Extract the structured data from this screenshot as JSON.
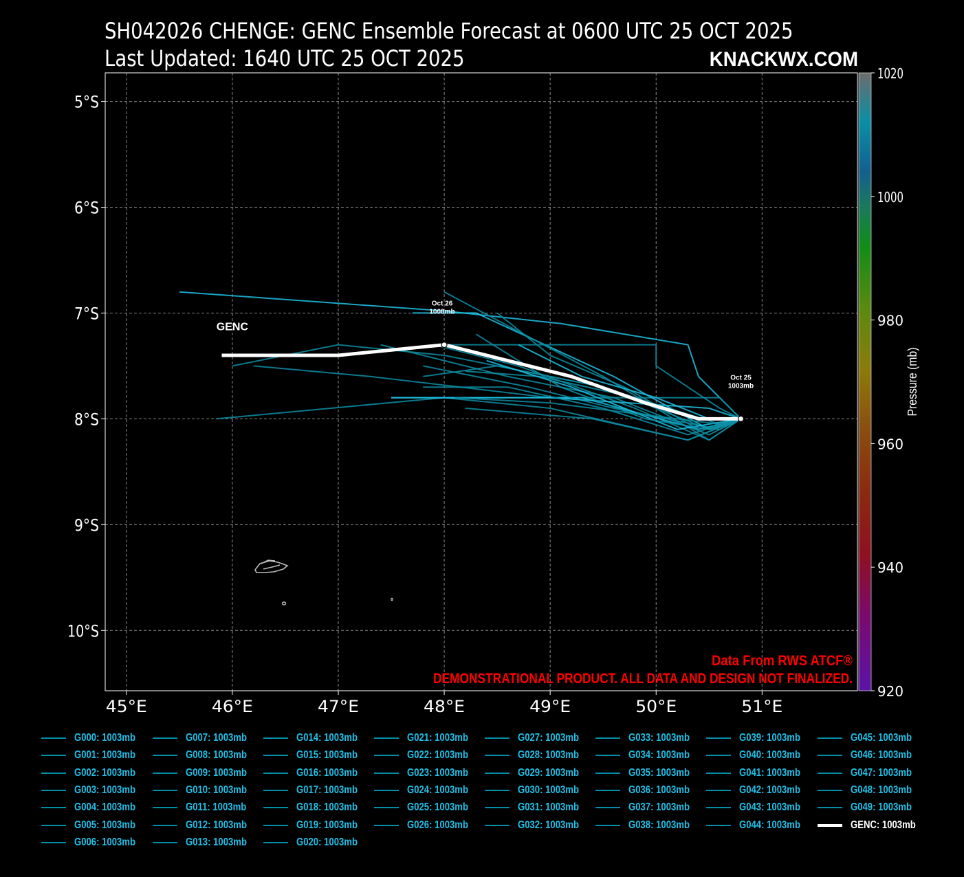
{
  "header": {
    "title": "SH042026 CHENGE: GENC Ensemble Forecast at 0600 UTC 25 OCT 2025",
    "subtitle": "Last Updated: 1640 UTC 25 OCT 2025",
    "brand": "KNACKWX.COM"
  },
  "colors": {
    "background": "#000000",
    "member_track": "#0a8fa6",
    "member_track_bright": "#1ec3e6",
    "genc_track": "#ffffff",
    "disclaimer": "#ff0000",
    "legend_text": "#1fc0e8"
  },
  "chart_data": {
    "type": "line",
    "title": "SH042026 CHENGE: GENC Ensemble Forecast at 0600 UTC 25 OCT 2025",
    "xlim": [
      44.8,
      51.9
    ],
    "ylim": [
      -10.57,
      -4.73
    ],
    "x_ticks": [
      45,
      46,
      47,
      48,
      49,
      50,
      51
    ],
    "x_tick_labels": [
      "45°E",
      "46°E",
      "47°E",
      "48°E",
      "49°E",
      "50°E",
      "51°E"
    ],
    "y_ticks": [
      -5,
      -6,
      -7,
      -8,
      -9,
      -10
    ],
    "y_tick_labels": [
      "5°S",
      "6°S",
      "7°S",
      "8°S",
      "9°S",
      "10°S"
    ],
    "grid": true,
    "colorbar": {
      "label": "Pressure (mb)",
      "range": [
        920,
        1020
      ],
      "ticks": [
        1020,
        1000,
        980,
        960,
        940,
        920
      ],
      "tick_labels": [
        "1020",
        "1000",
        "980",
        "960",
        "940",
        "920"
      ]
    },
    "annotations": [
      {
        "label": "GENC",
        "lon": 46.0,
        "lat": -7.15
      },
      {
        "line1": "Oct 26",
        "line2": "1008mb",
        "lon": 47.98,
        "lat": -6.93
      },
      {
        "line1": "Oct 25",
        "line2": "1003mb",
        "lon": 50.8,
        "lat": -7.63
      }
    ],
    "disclaimer": [
      "Data From RWS ATCF®",
      "DEMONSTRATIONAL PRODUCT. ALL DATA AND DESIGN NOT FINALIZED."
    ],
    "genc_track": {
      "name": "GENC: 1003mb",
      "points": [
        [
          50.8,
          -8.0
        ],
        [
          50.4,
          -8.0
        ],
        [
          49.9,
          -7.85
        ],
        [
          49.2,
          -7.6
        ],
        [
          48.0,
          -7.3
        ],
        [
          47.0,
          -7.4
        ],
        [
          45.9,
          -7.4
        ]
      ],
      "markers": [
        [
          50.8,
          -8.0
        ],
        [
          48.0,
          -7.3
        ]
      ]
    },
    "member_tracks": [
      [
        [
          50.8,
          -8.0
        ],
        [
          50.4,
          -7.6
        ],
        [
          50.3,
          -7.3
        ],
        [
          49.1,
          -7.1
        ],
        [
          48.0,
          -6.98
        ],
        [
          45.5,
          -6.8
        ]
      ],
      [
        [
          50.8,
          -8.0
        ],
        [
          50.5,
          -8.1
        ],
        [
          49.5,
          -7.7
        ],
        [
          48.0,
          -7.4
        ],
        [
          47.0,
          -7.3
        ],
        [
          46.0,
          -7.5
        ]
      ],
      [
        [
          50.8,
          -8.0
        ],
        [
          50.6,
          -7.8
        ],
        [
          49.0,
          -7.8
        ],
        [
          47.3,
          -7.6
        ],
        [
          46.2,
          -7.5
        ]
      ],
      [
        [
          50.8,
          -8.0
        ],
        [
          50.3,
          -8.2
        ],
        [
          49.0,
          -7.9
        ],
        [
          48.0,
          -7.8
        ],
        [
          45.85,
          -8.0
        ]
      ],
      [
        [
          50.8,
          -8.0
        ],
        [
          50.5,
          -8.1
        ],
        [
          49.6,
          -7.6
        ],
        [
          48.3,
          -7.0
        ],
        [
          47.7,
          -7.0
        ]
      ],
      [
        [
          50.8,
          -8.0
        ],
        [
          50.5,
          -8.2
        ],
        [
          49.5,
          -7.6
        ],
        [
          48.0,
          -6.8
        ]
      ],
      [
        [
          50.8,
          -8.0
        ],
        [
          50.6,
          -7.9
        ],
        [
          50.0,
          -7.5
        ],
        [
          50.0,
          -7.3
        ],
        [
          48.0,
          -7.3
        ]
      ],
      [
        [
          50.8,
          -8.0
        ],
        [
          50.5,
          -8.2
        ],
        [
          49.8,
          -7.9
        ],
        [
          48.7,
          -7.5
        ],
        [
          47.9,
          -7.3
        ]
      ],
      [
        [
          50.8,
          -8.0
        ],
        [
          50.4,
          -8.1
        ],
        [
          49.3,
          -7.8
        ],
        [
          47.5,
          -7.8
        ]
      ],
      [
        [
          50.8,
          -8.0
        ],
        [
          50.6,
          -8.1
        ],
        [
          49.6,
          -7.9
        ],
        [
          48.8,
          -7.7
        ],
        [
          47.8,
          -7.5
        ]
      ],
      [
        [
          50.8,
          -8.0
        ],
        [
          50.5,
          -8.15
        ],
        [
          49.6,
          -7.8
        ],
        [
          48.6,
          -7.6
        ],
        [
          47.4,
          -7.3
        ]
      ],
      [
        [
          50.8,
          -8.0
        ],
        [
          50.4,
          -8.1
        ],
        [
          49.7,
          -7.7
        ],
        [
          49.0,
          -7.4
        ],
        [
          48.5,
          -7.0
        ]
      ],
      [
        [
          50.8,
          -8.0
        ],
        [
          50.5,
          -7.9
        ],
        [
          49.0,
          -7.8
        ],
        [
          47.5,
          -7.8
        ]
      ],
      [
        [
          50.8,
          -8.0
        ],
        [
          50.3,
          -8.15
        ],
        [
          49.5,
          -7.9
        ],
        [
          48.6,
          -7.7
        ],
        [
          47.8,
          -7.7
        ]
      ],
      [
        [
          50.8,
          -8.0
        ],
        [
          50.4,
          -8.0
        ],
        [
          49.5,
          -7.7
        ],
        [
          48.5,
          -7.5
        ],
        [
          47.8,
          -7.6
        ]
      ],
      [
        [
          50.8,
          -8.0
        ],
        [
          50.6,
          -8.05
        ],
        [
          49.8,
          -7.8
        ],
        [
          48.9,
          -7.6
        ],
        [
          48.2,
          -7.55
        ]
      ],
      [
        [
          50.8,
          -8.0
        ],
        [
          50.2,
          -8.1
        ],
        [
          49.2,
          -7.7
        ],
        [
          48.4,
          -7.45
        ]
      ],
      [
        [
          50.8,
          -8.0
        ],
        [
          50.5,
          -8.1
        ],
        [
          49.9,
          -8.0
        ],
        [
          49.1,
          -7.7
        ],
        [
          48.3,
          -7.2
        ]
      ],
      [
        [
          50.8,
          -8.0
        ],
        [
          50.3,
          -8.2
        ],
        [
          49.4,
          -8.0
        ],
        [
          48.2,
          -7.9
        ]
      ],
      [
        [
          50.8,
          -8.0
        ],
        [
          50.6,
          -8.05
        ],
        [
          49.8,
          -7.95
        ],
        [
          49.0,
          -7.85
        ],
        [
          48.1,
          -7.8
        ]
      ],
      [
        [
          50.8,
          -8.0
        ],
        [
          50.5,
          -8.0
        ],
        [
          50.0,
          -7.8
        ],
        [
          49.3,
          -7.6
        ],
        [
          48.7,
          -7.3
        ]
      ]
    ]
  },
  "legend": {
    "items": [
      "G000: 1003mb",
      "G001: 1003mb",
      "G002: 1003mb",
      "G003: 1003mb",
      "G004: 1003mb",
      "G005: 1003mb",
      "G006: 1003mb",
      "G007: 1003mb",
      "G008: 1003mb",
      "G009: 1003mb",
      "G010: 1003mb",
      "G011: 1003mb",
      "G012: 1003mb",
      "G013: 1003mb",
      "G014: 1003mb",
      "G015: 1003mb",
      "G016: 1003mb",
      "G017: 1003mb",
      "G018: 1003mb",
      "G019: 1003mb",
      "G020: 1003mb",
      "G021: 1003mb",
      "G022: 1003mb",
      "G023: 1003mb",
      "G024: 1003mb",
      "G025: 1003mb",
      "G026: 1003mb",
      "G027: 1003mb",
      "G028: 1003mb",
      "G029: 1003mb",
      "G030: 1003mb",
      "G031: 1003mb",
      "G032: 1003mb",
      "G033: 1003mb",
      "G034: 1003mb",
      "G035: 1003mb",
      "G036: 1003mb",
      "G037: 1003mb",
      "G038: 1003mb",
      "G039: 1003mb",
      "G040: 1003mb",
      "G041: 1003mb",
      "G042: 1003mb",
      "G043: 1003mb",
      "G044: 1003mb",
      "G045: 1003mb",
      "G046: 1003mb",
      "G047: 1003mb",
      "G048: 1003mb",
      "G049: 1003mb",
      "GENC: 1003mb"
    ]
  }
}
